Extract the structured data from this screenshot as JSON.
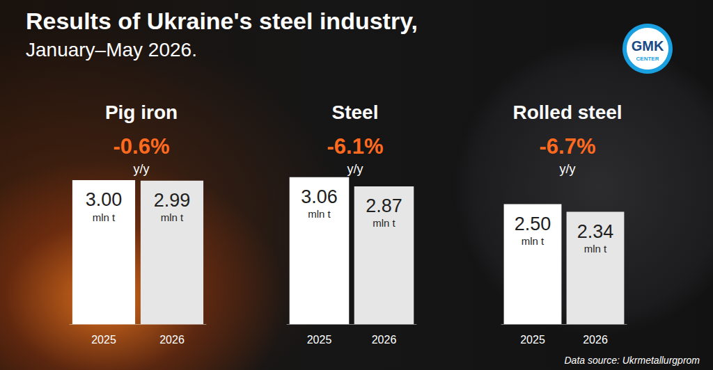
{
  "title": "Results of Ukraine's steel industry,",
  "subtitle": "January–May 2026.",
  "source": "Data source: Ukrmetallurgprom",
  "logo": [
    "GMK",
    "CENTER"
  ],
  "chart_data": [
    {
      "type": "bar",
      "title": "Pig iron",
      "annotations": [
        "-0.6%",
        "y/y"
      ],
      "categories": [
        "2025",
        "2026"
      ],
      "values": [
        3.0,
        2.99
      ],
      "value_labels": [
        "3.00 mln t",
        "2.99 mln t"
      ],
      "colors": [
        "#ffffff",
        "#e6e6e6"
      ],
      "ylim": [
        0,
        4
      ],
      "yticks": [
        0,
        4
      ],
      "grid": false,
      "tick_labels": "x",
      "data_labels": true
    },
    {
      "type": "bar",
      "title": "Steel",
      "annotations": [
        "-6.1%",
        "y/y"
      ],
      "categories": [
        "2025",
        "2026"
      ],
      "values": [
        3.06,
        2.87
      ],
      "value_labels": [
        "3.06 mln t",
        "2.87 mln t"
      ],
      "colors": [
        "#ffffff",
        "#e6e6e6"
      ],
      "ylim": [
        0,
        4
      ],
      "yticks": [
        0,
        4
      ],
      "grid": false,
      "tick_labels": "x",
      "data_labels": true
    },
    {
      "type": "bar",
      "title": "Rolled steel",
      "annotations": [
        "-6.7%",
        "y/y"
      ],
      "categories": [
        "2025",
        "2026"
      ],
      "values": [
        2.5,
        2.34
      ],
      "value_labels": [
        "2.50 mln t",
        "2.34 mln t"
      ],
      "colors": [
        "#ffffff",
        "#e6e6e6"
      ],
      "ylim": [
        0,
        4
      ],
      "yticks": [
        0,
        4
      ],
      "grid": false,
      "tick_labels": "x",
      "data_labels": true
    }
  ]
}
